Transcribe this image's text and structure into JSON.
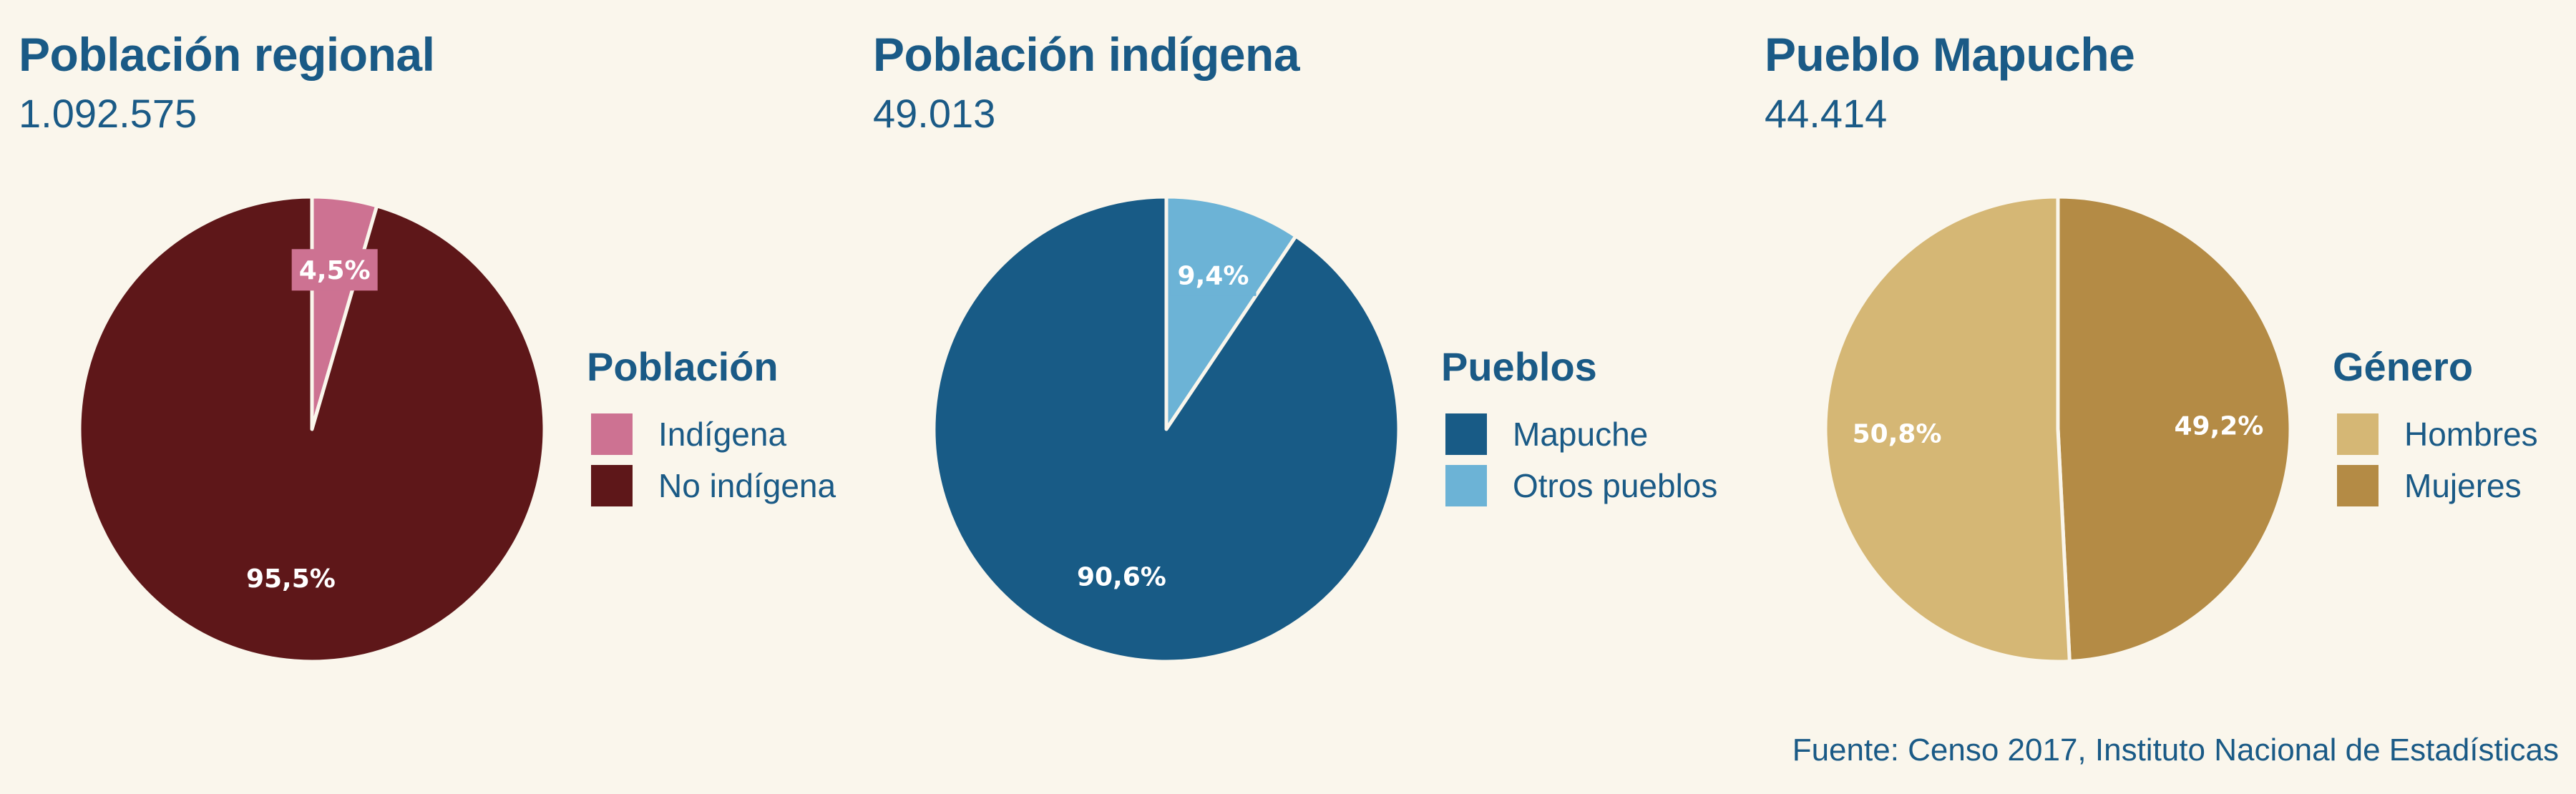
{
  "chart_data": [
    {
      "type": "pie",
      "title": "Población regional",
      "total": "1.092.575",
      "legend_title": "Población",
      "slices": [
        {
          "label": "Indígena",
          "value": 4.5,
          "display": "4,5%",
          "color": "#cd7292"
        },
        {
          "label": "No indígena",
          "value": 95.5,
          "display": "95,5%",
          "color": "#5e1719"
        }
      ]
    },
    {
      "type": "pie",
      "title": "Población indígena",
      "total": "49.013",
      "legend_title": "Pueblos",
      "slices": [
        {
          "label": "Mapuche",
          "value": 90.6,
          "display": "90,6%",
          "color": "#185b86"
        },
        {
          "label": "Otros pueblos",
          "value": 9.4,
          "display": "9,4%",
          "color": "#6cb3d6"
        }
      ]
    },
    {
      "type": "pie",
      "title": "Pueblo Mapuche",
      "total": "44.414",
      "legend_title": "Género",
      "slices": [
        {
          "label": "Hombres",
          "value": 50.8,
          "display": "50,8%",
          "color": "#d5b775"
        },
        {
          "label": "Mujeres",
          "value": 49.2,
          "display": "49,2%",
          "color": "#b48b45"
        }
      ]
    }
  ],
  "source": "Fuente: Censo 2017, Instituto Nacional de Estadísticas"
}
